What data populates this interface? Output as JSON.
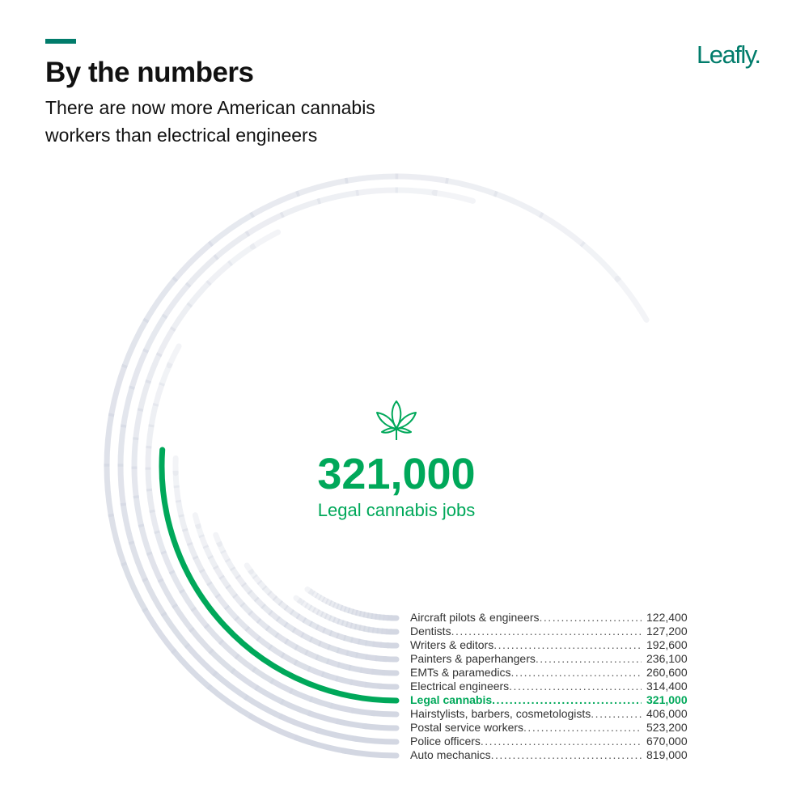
{
  "header": {
    "title": "By the numbers",
    "subtitle": "There are now more American cannabis workers than electrical engineers",
    "logo": "Leafly."
  },
  "highlight": {
    "value": "321,000",
    "label": "Legal cannabis jobs",
    "icon": "cannabis-leaf-icon"
  },
  "colors": {
    "accent": "#017c6b",
    "highlight": "#00a85a",
    "ring": "#d3d7e2"
  },
  "chart_data": {
    "type": "radial-bar",
    "categories": [
      "Aircraft pilots & engineers",
      "Dentists",
      "Writers & editors",
      "Painters & paperhangers",
      "EMTs & paramedics",
      "Electrical engineers",
      "Legal cannabis",
      "Hairstylists, barbers, cosmetologists",
      "Postal service workers",
      "Police officers",
      "Auto mechanics"
    ],
    "values": [
      122400,
      127200,
      192600,
      236100,
      260600,
      314400,
      321000,
      406000,
      523200,
      670000,
      819000
    ],
    "labels": [
      "122,400",
      "127,200",
      "192,600",
      "236,100",
      "260,600",
      "314,400",
      "321,000",
      "406,000",
      "523,200",
      "670,000",
      "819,000"
    ],
    "highlighted": "Legal cannabis"
  }
}
